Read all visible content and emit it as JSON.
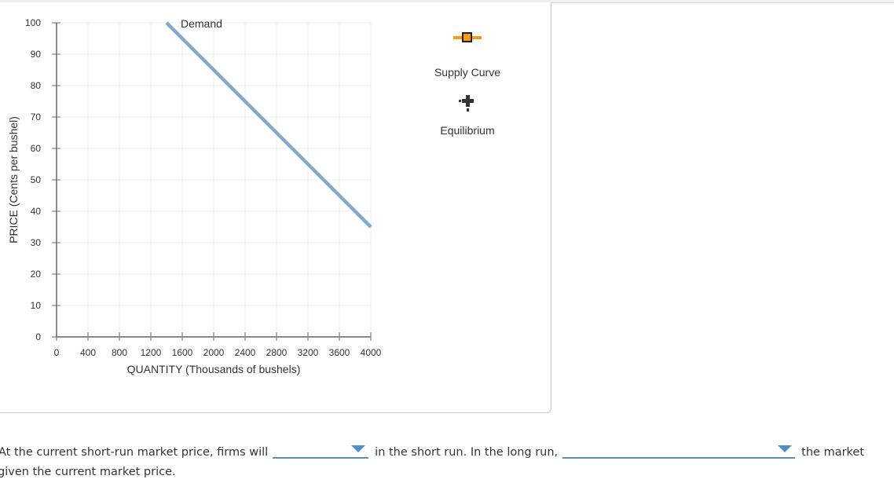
{
  "chart_data": {
    "type": "line",
    "title": "",
    "xlabel": "QUANTITY (Thousands of bushels)",
    "ylabel": "PRICE (Cents per bushel)",
    "xlim": [
      0,
      4000
    ],
    "ylim": [
      0,
      100
    ],
    "x_ticks": [
      0,
      400,
      800,
      1200,
      1600,
      2000,
      2400,
      2800,
      3200,
      3600,
      4000
    ],
    "y_ticks": [
      0,
      10,
      20,
      30,
      40,
      50,
      60,
      70,
      80,
      90,
      100
    ],
    "grid": true,
    "series": [
      {
        "name": "Demand",
        "color": "#7fa9cf",
        "points": [
          [
            1400,
            100
          ],
          [
            4000,
            35
          ]
        ]
      }
    ],
    "annotations": [
      {
        "text": "Demand",
        "x": 1450,
        "y": 100
      }
    ],
    "legend_position": "right"
  },
  "legend": {
    "items": [
      {
        "label": "Supply Curve",
        "icon": "orange-square-line-marker",
        "color": "#f39c12"
      },
      {
        "label": "Equilibrium",
        "icon": "black-cross-marker",
        "color": "#222222"
      }
    ]
  },
  "question": {
    "part1": "At the current short-run market price, firms will",
    "part2": "in the short run. In the long run,",
    "part3": "the market",
    "line2": "given the current market price.",
    "dropdown1": {
      "value": ""
    },
    "dropdown2": {
      "value": ""
    }
  },
  "colors": {
    "demand": "#7fa9cf",
    "supply_marker": "#f39c12",
    "dropdown_accent": "#4d8fcc",
    "grid": "#ececec",
    "axis": "#666666"
  }
}
